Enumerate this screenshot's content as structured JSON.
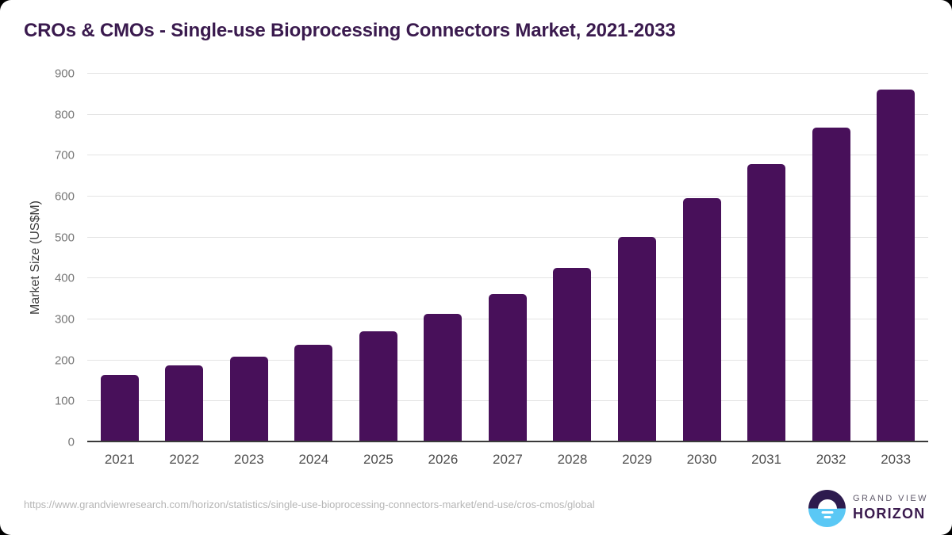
{
  "header": {
    "title": "CROs & CMOs - Single-use Bioprocessing Connectors Market, 2021-2033"
  },
  "chart_data": {
    "type": "bar",
    "title": "CROs & CMOs - Single-use Bioprocessing Connectors Market, 2021-2033",
    "categories": [
      "2021",
      "2022",
      "2023",
      "2024",
      "2025",
      "2026",
      "2027",
      "2028",
      "2029",
      "2030",
      "2031",
      "2032",
      "2033"
    ],
    "values": [
      165,
      187,
      209,
      238,
      271,
      313,
      362,
      426,
      501,
      596,
      680,
      768,
      861
    ],
    "xlabel": "",
    "ylabel": "Market Size (US$M)",
    "ylim": [
      0,
      900
    ],
    "ytick_step": 100,
    "grid": true,
    "legend_position": "none",
    "bar_color": "#48105a"
  },
  "colors": {
    "title_text": "#3a1a4e",
    "bar": "#48105a",
    "gridline": "#e4e4e4",
    "axis_line": "#3a3a3a",
    "ytick_text": "#777777",
    "xtick_text": "#4d4d4d",
    "url_text": "#b5b5b5",
    "logo_dark": "#2d1b4e",
    "logo_blue": "#5ac8f5"
  },
  "footer": {
    "source_url": "https://www.grandviewresearch.com/horizon/statistics/single-use-bioprocessing-connectors-market/end-use/cros-cmos/global",
    "logo": {
      "line1": "GRAND VIEW",
      "line2": "HORIZON"
    }
  }
}
